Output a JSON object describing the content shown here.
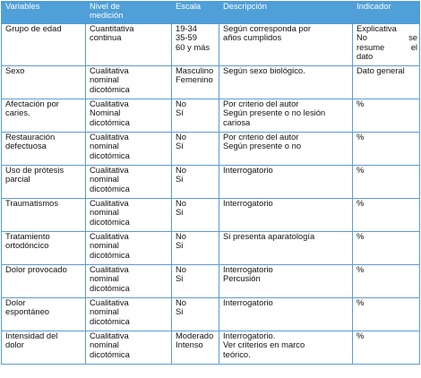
{
  "headers": [
    "Variables",
    "Nivel de medición",
    "Escala",
    "Descripción",
    "Indicador"
  ],
  "header_lines": [
    [
      "Variables"
    ],
    [
      "Nivel de",
      "medición"
    ],
    [
      "Escala"
    ],
    [
      "Descripción"
    ],
    [
      "Indicador"
    ]
  ],
  "colors": {
    "header_bg": "#4f9fd8",
    "border": "#5b9bd5"
  },
  "rows": [
    {
      "variable": [
        "Grupo de edad"
      ],
      "nivel": [
        "Cuantitativa",
        "continua"
      ],
      "escala": [
        "19-34",
        "35-59",
        "60 y más"
      ],
      "descripcion": [
        "Según corresponda por",
        "años cumplidos"
      ],
      "indicador": [
        "Explicativa",
        [
          "No",
          "se"
        ],
        [
          "resume",
          "el"
        ],
        "dato"
      ]
    },
    {
      "variable": [
        "Sexo"
      ],
      "nivel": [
        "Cualitativa",
        "nominal",
        "dicotómica"
      ],
      "escala": [
        "Masculino",
        "Femenino"
      ],
      "descripcion": [
        "Según sexo biológico."
      ],
      "indicador": [
        "Dato general"
      ]
    },
    {
      "variable": [
        "Afectación por",
        "caries."
      ],
      "nivel": [
        "Cualitativa",
        "Nominal",
        "dicotómica"
      ],
      "escala": [
        "No",
        "Sí"
      ],
      "descripcion": [
        "Por criterio del autor",
        "Según presente o no lesión",
        "cariosa"
      ],
      "indicador": [
        "%"
      ]
    },
    {
      "variable": [
        "Restauración",
        "defectuosa"
      ],
      "nivel": [
        "Cualitativa",
        "nominal",
        "dicotómica"
      ],
      "escala": [
        "No",
        "Sí"
      ],
      "descripcion": [
        "Por criterio del autor",
        "Según presente o no"
      ],
      "indicador": [
        "%"
      ]
    },
    {
      "variable": [
        "Uso de prótesis",
        "parcial"
      ],
      "nivel": [
        "Cualitativa",
        "nominal",
        "dicotómica"
      ],
      "escala": [
        "No",
        "Si"
      ],
      "descripcion": [
        "Interrogatorio"
      ],
      "indicador": [
        "%"
      ]
    },
    {
      "variable": [
        "Traumatismos"
      ],
      "nivel": [
        "Cualitativa",
        "nominal",
        "dicotómica"
      ],
      "escala": [
        "No",
        "Si"
      ],
      "descripcion": [
        "Interrogatorio"
      ],
      "indicador": [
        "%"
      ]
    },
    {
      "variable": [
        "Tratamiento",
        "ortodóncico"
      ],
      "nivel": [
        "Cualitativa",
        "nominal",
        "dicotómica"
      ],
      "escala": [
        "No",
        "Si"
      ],
      "descripcion": [
        "Si presenta aparatología"
      ],
      "indicador": [
        "%"
      ]
    },
    {
      "variable": [
        "Dolor provocado"
      ],
      "nivel": [
        "Cualitativa",
        "nominal",
        "dicotómica"
      ],
      "escala": [
        "No",
        "Si"
      ],
      "descripcion": [
        "Interrogatorio",
        "Percusión"
      ],
      "indicador": [
        "%"
      ]
    },
    {
      "variable": [
        "Dolor",
        "espontáneo"
      ],
      "nivel": [
        "Cualitativa",
        "nominal",
        "dicotómica"
      ],
      "escala": [
        "No",
        "Si"
      ],
      "descripcion": [
        "Interrogatorio"
      ],
      "indicador": [
        "%"
      ]
    },
    {
      "variable": [
        "Intensidad del",
        "dolor"
      ],
      "nivel": [
        "Cualitativa",
        "nominal",
        "dicotómica"
      ],
      "escala": [
        "Moderado",
        "Intenso"
      ],
      "descripcion": [
        "Interrogatorio.",
        "Ver criterios en marco",
        "teórico."
      ],
      "indicador": [
        "%"
      ]
    }
  ]
}
